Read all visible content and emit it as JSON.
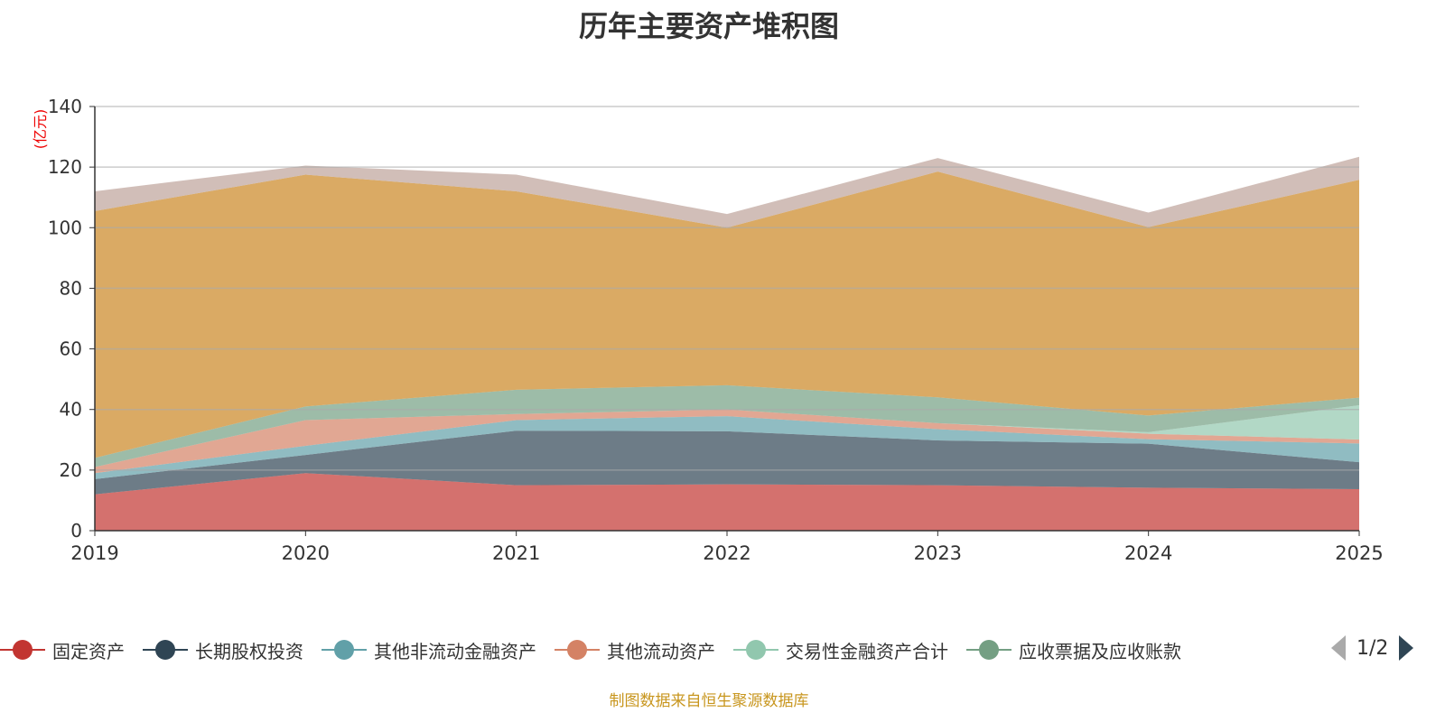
{
  "title": "历年主要资产堆积图",
  "footer": "制图数据来自恒生聚源数据库",
  "legend_pager": {
    "text": "1/2"
  },
  "chart_data": {
    "type": "area",
    "stacked": true,
    "title": "历年主要资产堆积图",
    "ylabel": "(亿元)",
    "xlabel": "",
    "ylim": [
      0,
      140
    ],
    "yticks": [
      0,
      20,
      40,
      60,
      80,
      100,
      120,
      140
    ],
    "grid": true,
    "legend_position": "bottom",
    "categories": [
      "2019",
      "2020",
      "2021",
      "2022",
      "2023",
      "2024",
      "2025"
    ],
    "series": [
      {
        "name": "固定资产",
        "color": "#c23531",
        "values": [
          12,
          19,
          15,
          15.3,
          15,
          14.2,
          13.7
        ]
      },
      {
        "name": "长期股权投资",
        "color": "#2f4554",
        "values": [
          5,
          6,
          18,
          17.5,
          14.8,
          14.5,
          8.9
        ]
      },
      {
        "name": "其他非流动金融资产",
        "color": "#61a0a8",
        "values": [
          2,
          3,
          3.5,
          5,
          3.7,
          1.5,
          6.2
        ]
      },
      {
        "name": "其他流动资产",
        "color": "#d48265",
        "values": [
          2,
          8.5,
          2,
          2.2,
          2,
          1.8,
          1.3
        ]
      },
      {
        "name": "交易性金融资产合计",
        "color": "#91c7ae",
        "values": [
          0,
          0,
          0,
          0,
          0,
          0.5,
          11.3
        ]
      },
      {
        "name": "应收票据及应收账款",
        "color": "#749f83",
        "values": [
          3,
          4.5,
          8,
          8,
          8.5,
          5.5,
          2.5
        ]
      },
      {
        "name": "",
        "color": "#ca8622",
        "values": [
          81.5,
          76.5,
          65.5,
          52,
          74.5,
          62.2,
          71.9
        ]
      },
      {
        "name": "",
        "color": "#bda29a",
        "values": [
          6.5,
          3,
          5.5,
          4.5,
          4.5,
          4.8,
          7.6
        ]
      }
    ]
  }
}
